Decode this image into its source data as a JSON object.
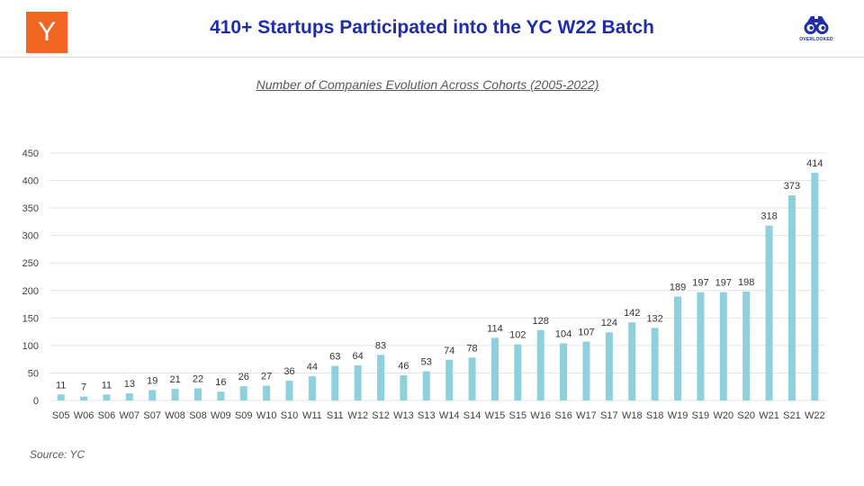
{
  "header": {
    "logo_text": "Y",
    "title": "410+ Startups Participated into the YC W22 Batch",
    "brand_label": "OVERLOOKED"
  },
  "colors": {
    "bar": "#8ed0dc",
    "title": "#1f2ea8",
    "logo_bg": "#f26522",
    "grid": "#e5e5e5"
  },
  "chart_data": {
    "type": "bar",
    "title": "Number of Companies Evolution Across Cohorts (2005-2022)",
    "xlabel": "",
    "ylabel": "",
    "ylim": [
      0,
      450
    ],
    "yticks": [
      0,
      50,
      100,
      150,
      200,
      250,
      300,
      350,
      400,
      450
    ],
    "grid": true,
    "data_labels": true,
    "categories": [
      "S05",
      "W06",
      "S06",
      "W07",
      "S07",
      "W08",
      "S08",
      "W09",
      "S09",
      "W10",
      "S10",
      "W11",
      "S11",
      "W12",
      "S12",
      "W13",
      "S13",
      "W14",
      "S14",
      "W15",
      "S15",
      "W16",
      "S16",
      "W17",
      "S17",
      "W18",
      "S18",
      "W19",
      "S19",
      "W20",
      "S20",
      "W21",
      "S21",
      "W22"
    ],
    "values": [
      11,
      7,
      11,
      13,
      19,
      21,
      22,
      16,
      26,
      27,
      36,
      44,
      63,
      64,
      83,
      46,
      53,
      74,
      78,
      114,
      102,
      128,
      104,
      107,
      124,
      142,
      132,
      189,
      197,
      197,
      198,
      318,
      373,
      414
    ]
  },
  "footer": {
    "source": "Source: YC"
  }
}
